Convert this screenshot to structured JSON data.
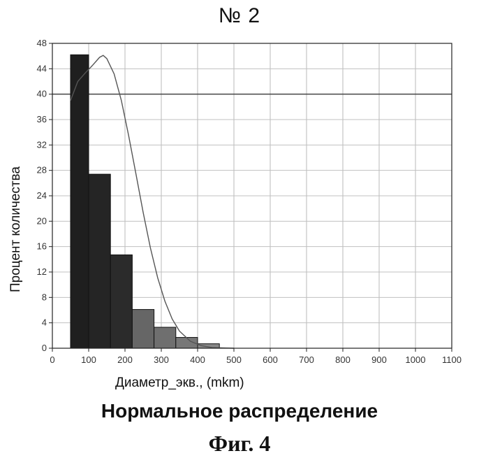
{
  "header": {
    "title": "№ 2"
  },
  "chart_data": {
    "type": "bar",
    "title": "№ 2",
    "xlabel": "Диаметр_экв., (mkm)",
    "ylabel": "Процент количества",
    "xlim": [
      0,
      1100
    ],
    "ylim": [
      0,
      48
    ],
    "x_ticks": [
      0,
      100,
      200,
      300,
      400,
      500,
      600,
      700,
      800,
      900,
      1000,
      1100
    ],
    "y_ticks": [
      0,
      4,
      8,
      12,
      16,
      20,
      24,
      28,
      32,
      36,
      40,
      44,
      48
    ],
    "bins": [
      {
        "start": 50,
        "end": 100,
        "value": 46.2
      },
      {
        "start": 100,
        "end": 160,
        "value": 27.4
      },
      {
        "start": 160,
        "end": 220,
        "value": 14.7
      },
      {
        "start": 220,
        "end": 280,
        "value": 6.1
      },
      {
        "start": 280,
        "end": 340,
        "value": 3.3
      },
      {
        "start": 340,
        "end": 400,
        "value": 1.7
      },
      {
        "start": 400,
        "end": 460,
        "value": 0.7
      }
    ],
    "bar_colors": [
      "#1f1f1f",
      "#252525",
      "#2b2b2b",
      "#666666",
      "#6f6f6f",
      "#777777",
      "#888888"
    ],
    "curve": {
      "name": "Нормальное распределение",
      "x": [
        50,
        70,
        90,
        110,
        130,
        140,
        150,
        170,
        190,
        210,
        230,
        250,
        270,
        290,
        310,
        330,
        350,
        380,
        410,
        440,
        470,
        500
      ],
      "y": [
        39.0,
        42.0,
        43.3,
        44.5,
        45.8,
        46.1,
        45.6,
        43.2,
        39.0,
        33.5,
        27.5,
        21.4,
        15.8,
        11.1,
        7.4,
        4.6,
        2.7,
        1.1,
        0.4,
        0.1,
        0.05,
        0.0
      ]
    },
    "grid": true,
    "legend": "none"
  },
  "footer": {
    "distribution_label": "Нормальное распределение",
    "figure_label": "Фиг. 4"
  }
}
